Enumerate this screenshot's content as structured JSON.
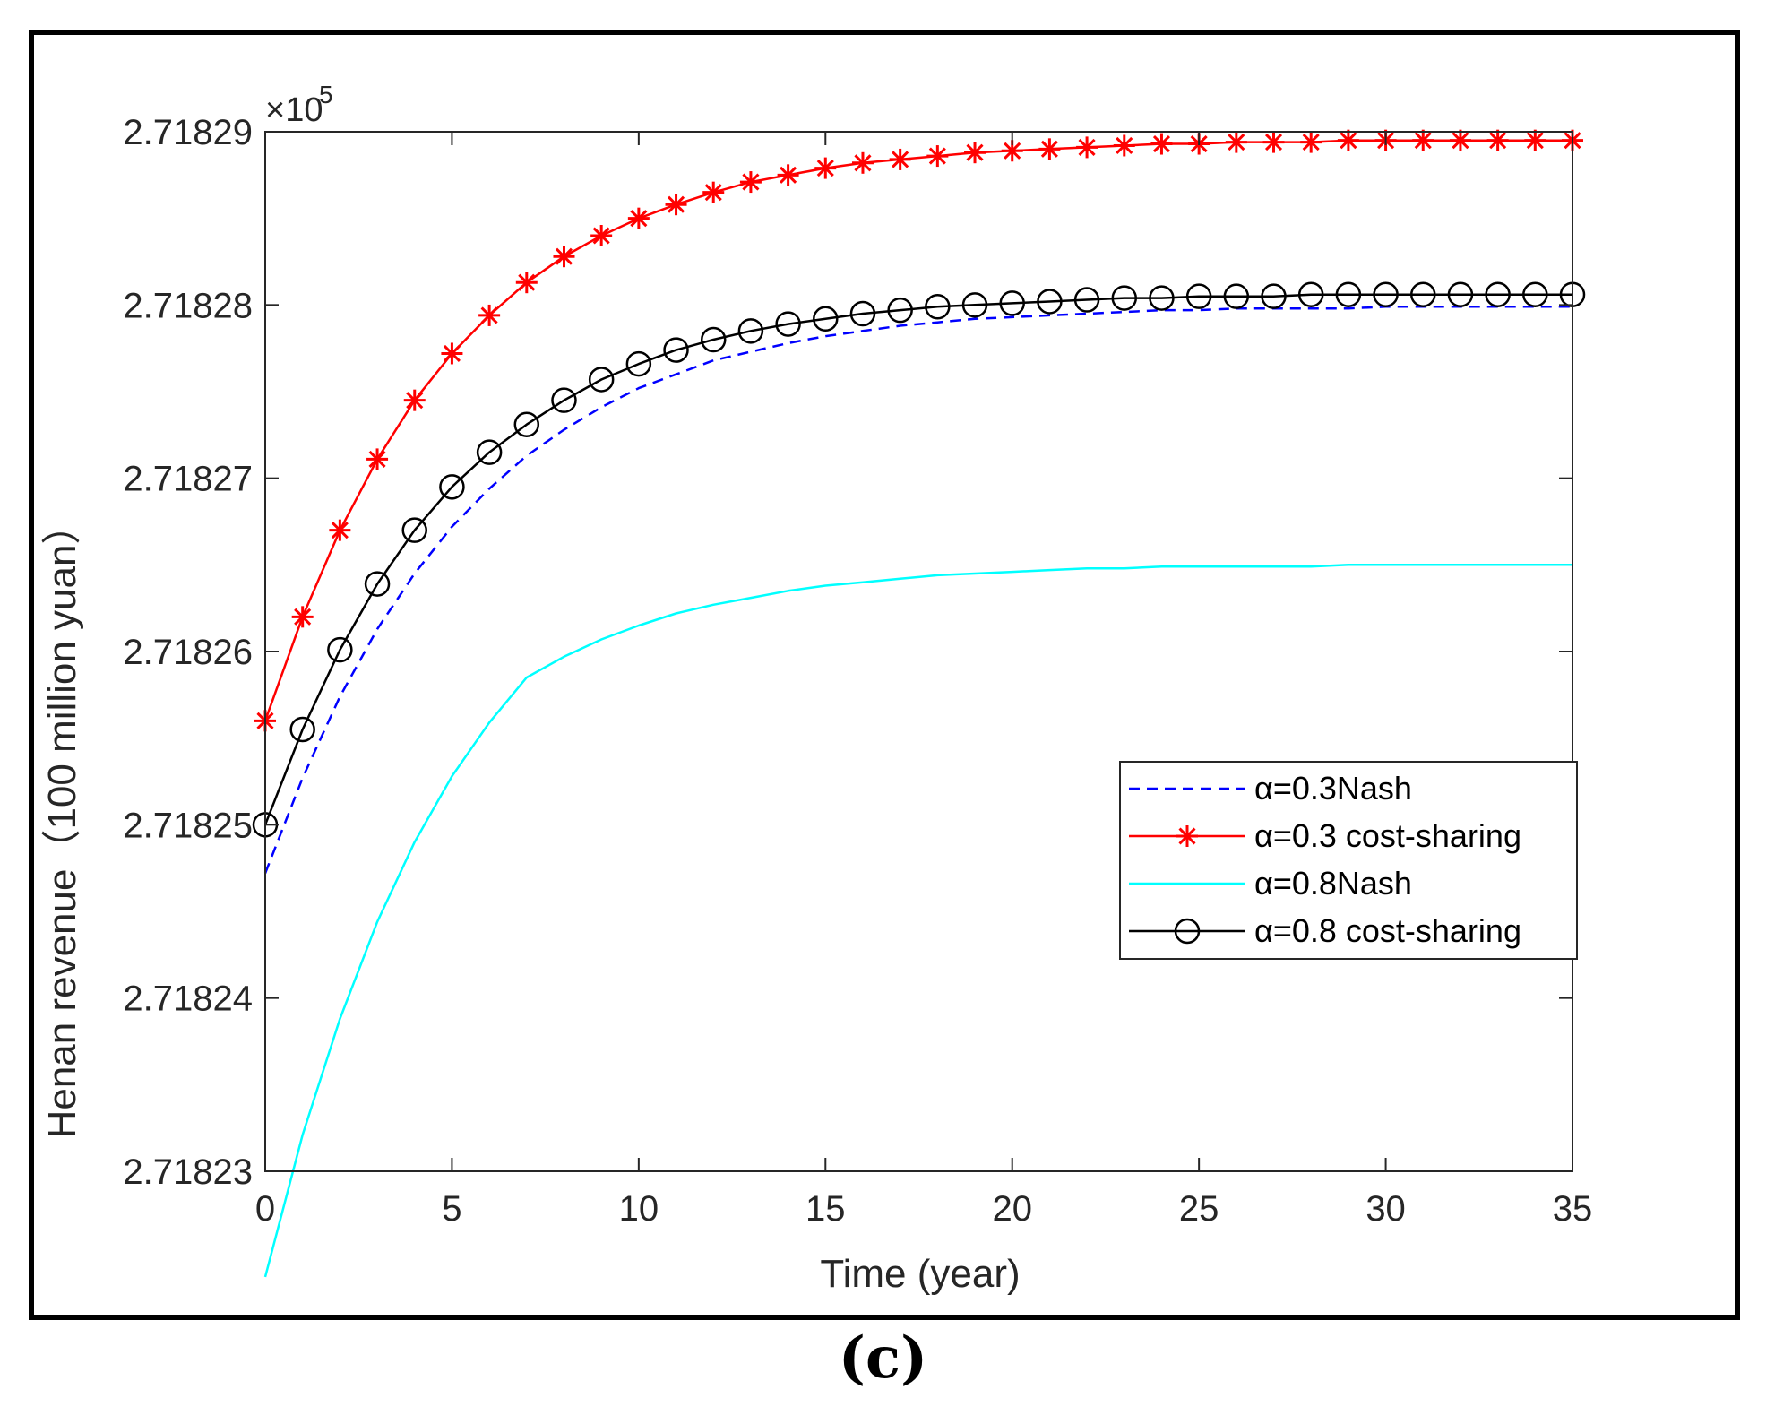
{
  "caption": "(c)",
  "chart_data": {
    "type": "line",
    "title": "",
    "xlabel": "Time (year)",
    "ylabel": "Henan revenue（100 million yuan）",
    "y_multiplier": "×10",
    "y_multiplier_exp": "5",
    "xlim": [
      0,
      35
    ],
    "ylim": [
      2.71823,
      2.71829
    ],
    "x_ticks": [
      0,
      5,
      10,
      15,
      20,
      25,
      30,
      35
    ],
    "x_tick_labels": [
      "0",
      "5",
      "10",
      "15",
      "20",
      "25",
      "30",
      "35"
    ],
    "y_ticks": [
      2.71823,
      2.71824,
      2.71825,
      2.71826,
      2.71827,
      2.71828,
      2.71829
    ],
    "y_tick_labels": [
      "2.71823",
      "2.71824",
      "2.71825",
      "2.71826",
      "2.71827",
      "2.71828",
      "2.71829"
    ],
    "legend_position": "lower-right",
    "x": [
      0,
      1,
      2,
      3,
      4,
      5,
      6,
      7,
      8,
      9,
      10,
      11,
      12,
      13,
      14,
      15,
      16,
      17,
      18,
      19,
      20,
      21,
      22,
      23,
      24,
      25,
      26,
      27,
      28,
      29,
      30,
      31,
      32,
      33,
      34,
      35
    ],
    "series": [
      {
        "name": "α=0.3Nash",
        "color": "#0000ff",
        "style": "dashed",
        "marker": "none",
        "values": [
          2.7182472,
          2.7182527,
          2.7182574,
          2.7182613,
          2.7182645,
          2.7182672,
          2.7182694,
          2.7182713,
          2.7182728,
          2.7182741,
          2.7182752,
          2.718276,
          2.7182768,
          2.7182773,
          2.7182778,
          2.7182782,
          2.7182785,
          2.7182788,
          2.718279,
          2.7182792,
          2.7182793,
          2.7182794,
          2.7182795,
          2.7182796,
          2.7182797,
          2.7182797,
          2.7182798,
          2.7182798,
          2.7182798,
          2.7182798,
          2.7182799,
          2.7182799,
          2.7182799,
          2.7182799,
          2.7182799,
          2.7182799
        ]
      },
      {
        "name": "α=0.3 cost-sharing",
        "color": "#ff0000",
        "style": "solid",
        "marker": "star",
        "values": [
          2.718256,
          2.718262,
          2.718267,
          2.7182711,
          2.7182745,
          2.7182772,
          2.7182794,
          2.7182813,
          2.7182828,
          2.718284,
          2.718285,
          2.7182858,
          2.7182865,
          2.7182871,
          2.7182875,
          2.7182879,
          2.7182882,
          2.7182884,
          2.7182886,
          2.7182888,
          2.7182889,
          2.718289,
          2.7182891,
          2.7182892,
          2.7182893,
          2.7182893,
          2.7182894,
          2.7182894,
          2.7182894,
          2.7182895,
          2.7182895,
          2.7182895,
          2.7182895,
          2.7182895,
          2.7182895,
          2.7182895
        ]
      },
      {
        "name": "α=0.8Nash",
        "color": "#00ffff",
        "style": "solid",
        "marker": "none",
        "values": [
          2.7182239,
          2.7182321,
          2.7182388,
          2.7182444,
          2.718249,
          2.7182528,
          2.7182559,
          2.7182585,
          2.7182597,
          2.7182607,
          2.7182615,
          2.7182622,
          2.7182627,
          2.7182631,
          2.7182635,
          2.7182638,
          2.718264,
          2.7182642,
          2.7182644,
          2.7182645,
          2.7182646,
          2.7182647,
          2.7182648,
          2.7182648,
          2.7182649,
          2.7182649,
          2.7182649,
          2.7182649,
          2.7182649,
          2.718265,
          2.718265,
          2.718265,
          2.718265,
          2.718265,
          2.718265,
          2.718265
        ]
      },
      {
        "name": "α=0.8 cost-sharing",
        "color": "#000000",
        "style": "solid",
        "marker": "circle",
        "values": [
          2.71825,
          2.7182555,
          2.7182601,
          2.7182639,
          2.718267,
          2.7182695,
          2.7182715,
          2.7182731,
          2.7182745,
          2.7182757,
          2.7182766,
          2.7182774,
          2.718278,
          2.7182785,
          2.7182789,
          2.7182792,
          2.7182795,
          2.7182797,
          2.7182799,
          2.71828,
          2.7182801,
          2.7182802,
          2.7182803,
          2.7182804,
          2.7182804,
          2.7182805,
          2.7182805,
          2.7182805,
          2.7182806,
          2.7182806,
          2.7182806,
          2.7182806,
          2.7182806,
          2.7182806,
          2.7182806,
          2.7182806
        ]
      }
    ]
  }
}
